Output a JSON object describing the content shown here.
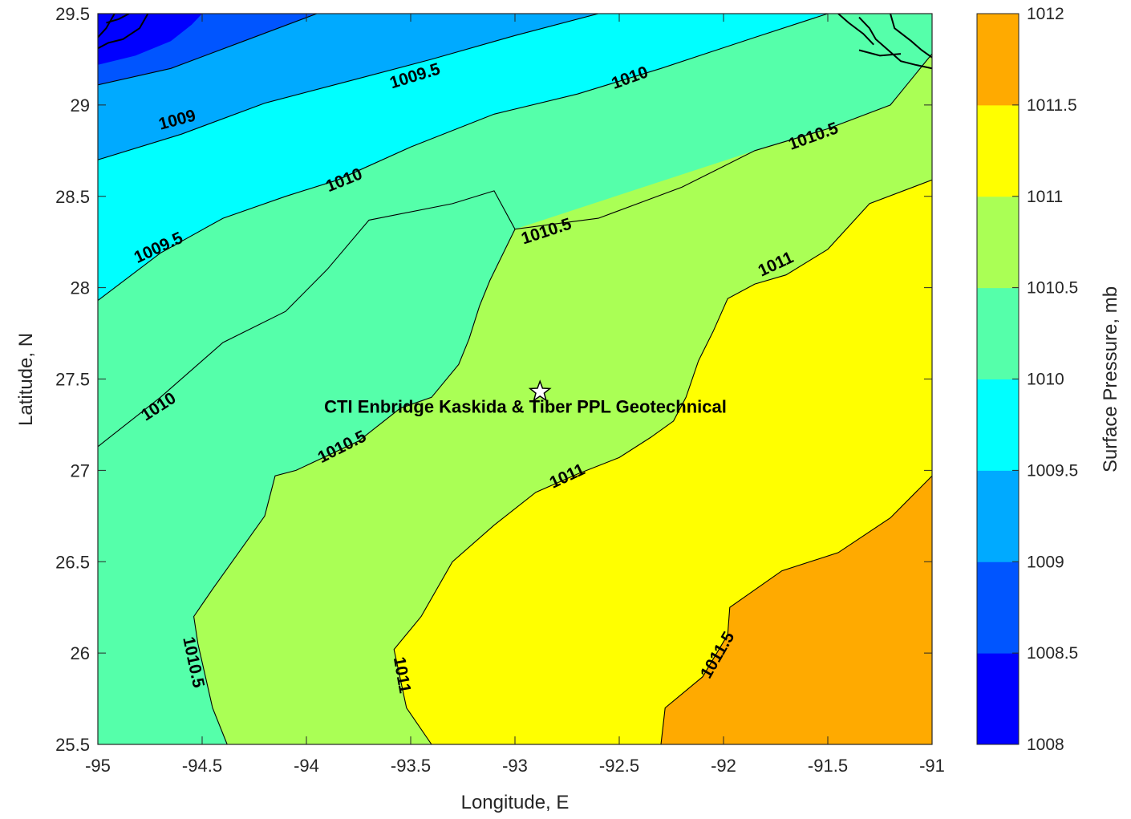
{
  "chart_data": {
    "type": "contour",
    "title": "",
    "xlabel": "Longitude, E",
    "ylabel": "Latitude, N",
    "xlim": [
      -95,
      -91
    ],
    "ylim": [
      25.5,
      29.5
    ],
    "x_ticks": [
      -95,
      -94.5,
      -94,
      -93.5,
      -93,
      -92.5,
      -92,
      -91.5,
      -91
    ],
    "y_ticks": [
      25.5,
      26,
      26.5,
      27,
      27.5,
      28,
      28.5,
      29,
      29.5
    ],
    "x_tick_labels": [
      "-95",
      "-94.5",
      "-94",
      "-93.5",
      "-93",
      "-92.5",
      "-92",
      "-91.5",
      "-91"
    ],
    "y_tick_labels": [
      "25.5",
      "26",
      "26.5",
      "27",
      "27.5",
      "28",
      "28.5",
      "29",
      "29.5"
    ],
    "colorbar": {
      "label": "Surface Pressure, mb",
      "range": [
        1008,
        1012
      ],
      "ticks": [
        1008,
        1008.5,
        1009,
        1009.5,
        1010,
        1010.5,
        1011,
        1011.5,
        1012
      ],
      "tick_labels": [
        "1008",
        "1008.5",
        "1009",
        "1009.5",
        "1010",
        "1010.5",
        "1011",
        "1011.5",
        "1012"
      ],
      "colors": [
        "#0000ff",
        "#0055ff",
        "#00aaff",
        "#00ffff",
        "#55ffaa",
        "#aaff55",
        "#ffff00",
        "#ffaa00",
        "#ff5500"
      ]
    },
    "contour_levels": [
      1009,
      1009.5,
      1010,
      1010.5,
      1011,
      1011.5
    ],
    "contours": [
      {
        "level": 1009,
        "points": [
          [
            -95,
            29.11
          ],
          [
            -94.65,
            29.2
          ],
          [
            -94.3,
            29.35
          ],
          [
            -93.95,
            29.5
          ]
        ]
      },
      {
        "level": 1009.5,
        "points": [
          [
            -95,
            28.7
          ],
          [
            -94.6,
            28.84
          ],
          [
            -94.2,
            29.01
          ],
          [
            -93.8,
            29.13
          ],
          [
            -93.4,
            29.25
          ],
          [
            -93.0,
            29.38
          ],
          [
            -92.6,
            29.5
          ]
        ]
      },
      {
        "level": 1010,
        "points": [
          [
            -95,
            27.93
          ],
          [
            -94.7,
            28.19
          ],
          [
            -94.4,
            28.38
          ],
          [
            -94.1,
            28.5
          ],
          [
            -93.85,
            28.59
          ],
          [
            -93.5,
            28.77
          ],
          [
            -93.1,
            28.95
          ],
          [
            -92.7,
            29.06
          ],
          [
            -92.3,
            29.2
          ],
          [
            -91.85,
            29.37
          ],
          [
            -91.5,
            29.5
          ]
        ]
      },
      {
        "level": 1010.5,
        "points": [
          [
            -95,
            27.13
          ],
          [
            -94.7,
            27.4
          ],
          [
            -94.4,
            27.7
          ],
          [
            -94.1,
            27.87
          ],
          [
            -93.9,
            28.1
          ],
          [
            -93.7,
            28.37
          ],
          [
            -93.3,
            28.46
          ],
          [
            -93.1,
            28.53
          ],
          [
            -93.0,
            28.32
          ],
          [
            -92.6,
            28.38
          ],
          [
            -92.2,
            28.55
          ],
          [
            -91.85,
            28.75
          ],
          [
            -91.5,
            28.87
          ],
          [
            -91.2,
            29.0
          ],
          [
            -91,
            29.28
          ]
        ]
      },
      {
        "level": 1010.5,
        "points": [
          [
            -94.38,
            25.5
          ],
          [
            -94.45,
            25.7
          ],
          [
            -94.52,
            26.05
          ],
          [
            -94.54,
            26.2
          ],
          [
            -94.45,
            26.35
          ],
          [
            -94.2,
            26.75
          ],
          [
            -94.15,
            26.97
          ],
          [
            -94.05,
            27.0
          ],
          [
            -93.75,
            27.16
          ],
          [
            -93.55,
            27.34
          ],
          [
            -93.4,
            27.4
          ],
          [
            -93.27,
            27.58
          ],
          [
            -93.22,
            27.72
          ],
          [
            -93.17,
            27.9
          ],
          [
            -93.12,
            28.04
          ],
          [
            -93.0,
            28.32
          ]
        ]
      },
      {
        "level": 1011,
        "points": [
          [
            -93.4,
            25.5
          ],
          [
            -93.52,
            25.7
          ],
          [
            -93.58,
            26.02
          ],
          [
            -93.45,
            26.2
          ],
          [
            -93.3,
            26.5
          ],
          [
            -93.1,
            26.7
          ],
          [
            -92.9,
            26.88
          ],
          [
            -92.7,
            26.98
          ],
          [
            -92.5,
            27.07
          ],
          [
            -92.35,
            27.18
          ],
          [
            -92.24,
            27.27
          ],
          [
            -92.18,
            27.4
          ],
          [
            -92.12,
            27.6
          ],
          [
            -92.05,
            27.76
          ],
          [
            -91.98,
            27.94
          ],
          [
            -91.85,
            28.02
          ],
          [
            -91.7,
            28.07
          ],
          [
            -91.5,
            28.21
          ],
          [
            -91.3,
            28.46
          ],
          [
            -91,
            28.59
          ]
        ]
      },
      {
        "level": 1011.5,
        "points": [
          [
            -92.3,
            25.5
          ],
          [
            -92.28,
            25.7
          ],
          [
            -92.1,
            25.87
          ],
          [
            -91.98,
            26.1
          ],
          [
            -91.97,
            26.25
          ],
          [
            -91.72,
            26.45
          ],
          [
            -91.45,
            26.55
          ],
          [
            -91.2,
            26.74
          ],
          [
            -91,
            26.97
          ]
        ]
      }
    ],
    "contour_labels": [
      {
        "text": "1009",
        "lon": -94.62,
        "lat": 28.92,
        "angle": -15
      },
      {
        "text": "1009.5",
        "lon": -93.48,
        "lat": 29.16,
        "angle": -17
      },
      {
        "text": "1010",
        "lon": -92.45,
        "lat": 29.15,
        "angle": -20
      },
      {
        "text": "1010.5",
        "lon": -91.57,
        "lat": 28.83,
        "angle": -20
      },
      {
        "text": "1009.5",
        "lon": -94.71,
        "lat": 28.22,
        "angle": -25
      },
      {
        "text": "1010",
        "lon": -93.82,
        "lat": 28.59,
        "angle": -22
      },
      {
        "text": "1010.5",
        "lon": -92.85,
        "lat": 28.31,
        "angle": -18
      },
      {
        "text": "1011",
        "lon": -91.75,
        "lat": 28.13,
        "angle": -25
      },
      {
        "text": "1010",
        "lon": -94.71,
        "lat": 27.35,
        "angle": -33
      },
      {
        "text": "1010.5",
        "lon": -93.83,
        "lat": 27.13,
        "angle": -27
      },
      {
        "text": "1011",
        "lon": -92.75,
        "lat": 26.97,
        "angle": -25
      },
      {
        "text": "1010.5",
        "lon": -94.54,
        "lat": 25.95,
        "angle": 78
      },
      {
        "text": "1011",
        "lon": -93.54,
        "lat": 25.88,
        "angle": 80
      },
      {
        "text": "1011.5",
        "lon": -92.03,
        "lat": 25.99,
        "angle": -60
      }
    ],
    "annotation": {
      "text": "CTI Enbridge  Kaskida & Tiber PPL Geotechnical",
      "lon": -92.95,
      "lat": 27.35
    },
    "marker": {
      "symbol": "star",
      "lon": -92.88,
      "lat": 27.43
    }
  }
}
